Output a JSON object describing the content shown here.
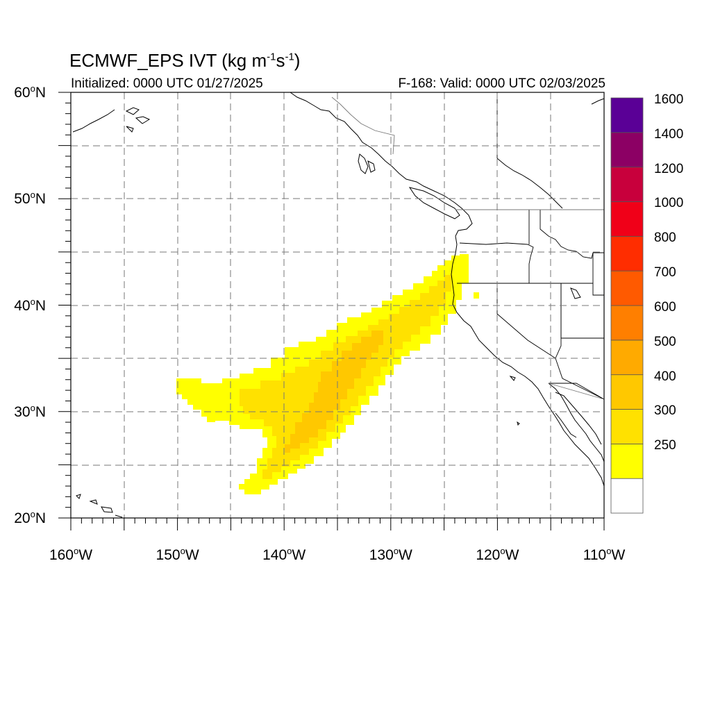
{
  "title": {
    "main": "ECMWF_EPS IVT (kg m",
    "sup1": "-1",
    "mid": "s",
    "sup2": "-1",
    "end": ")"
  },
  "initialized": "Initialized: 0000 UTC 01/27/2025",
  "valid": "F-168: Valid: 0000 UTC 02/03/2025",
  "map": {
    "lon_range": [
      -160,
      -110
    ],
    "lat_range": [
      20,
      60
    ],
    "lat_ticks": [
      {
        "value": 60,
        "label": "60"
      },
      {
        "value": 50,
        "label": "50"
      },
      {
        "value": 40,
        "label": "40"
      },
      {
        "value": 30,
        "label": "30"
      },
      {
        "value": 20,
        "label": "20"
      }
    ],
    "lat_suffix": "N",
    "lon_ticks": [
      {
        "value": -160,
        "label": "160"
      },
      {
        "value": -150,
        "label": "150"
      },
      {
        "value": -140,
        "label": "140"
      },
      {
        "value": -130,
        "label": "130"
      },
      {
        "value": -120,
        "label": "120"
      },
      {
        "value": -110,
        "label": "110"
      }
    ],
    "lon_suffix": "W",
    "gridlines": "dashed every 5 degrees"
  },
  "colorbar": {
    "levels": [
      {
        "label": "",
        "color": "#ffffff"
      },
      {
        "label": "250",
        "color": "#ffff00"
      },
      {
        "label": "300",
        "color": "#ffe100"
      },
      {
        "label": "400",
        "color": "#ffc800"
      },
      {
        "label": "500",
        "color": "#ffaa00"
      },
      {
        "label": "600",
        "color": "#ff7f00"
      },
      {
        "label": "700",
        "color": "#ff5a00"
      },
      {
        "label": "800",
        "color": "#ff2d00"
      },
      {
        "label": "1000",
        "color": "#f00018"
      },
      {
        "label": "1200",
        "color": "#c8003c"
      },
      {
        "label": "1400",
        "color": "#8c0064"
      },
      {
        "label": "1600",
        "color": "#5a0096"
      }
    ]
  },
  "ivt_field": {
    "description_units": "kg m-1 s-1",
    "regions": [
      {
        "level": "250",
        "color": "#ffff00"
      },
      {
        "level": "300",
        "color": "#ffe100"
      },
      {
        "level": "400",
        "color": "#ffc800"
      }
    ]
  }
}
